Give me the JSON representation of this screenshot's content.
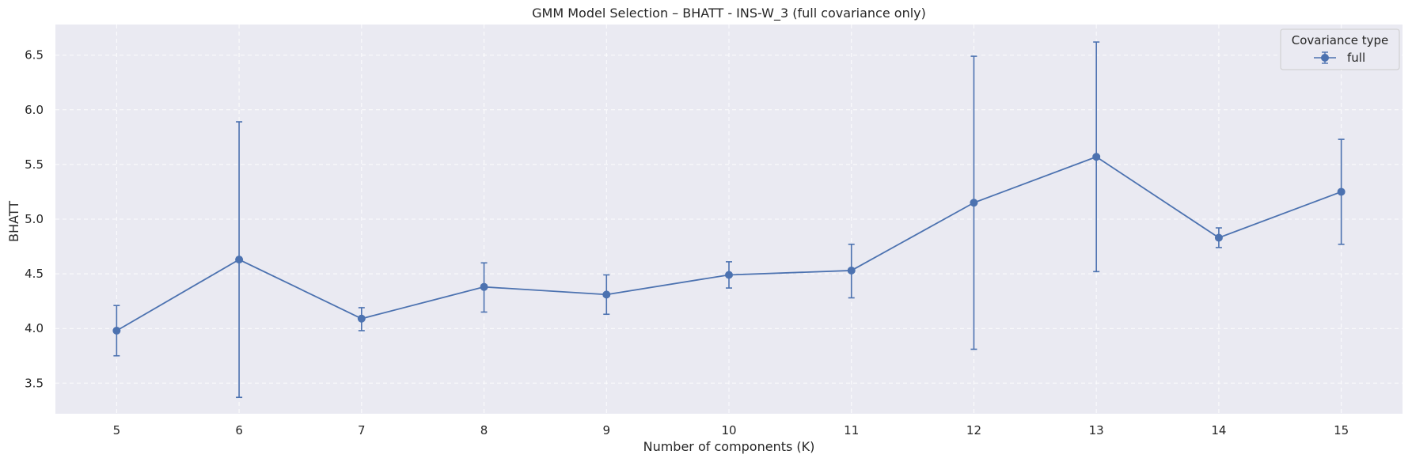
{
  "chart_data": {
    "type": "line",
    "title": "GMM Model Selection – BHATT - INS-W_3 (full covariance only)",
    "xlabel": "Number of components (K)",
    "ylabel": "BHATT",
    "x": [
      5,
      6,
      7,
      8,
      9,
      10,
      11,
      12,
      13,
      14,
      15
    ],
    "x_tick_labels": [
      "5",
      "6",
      "7",
      "8",
      "9",
      "10",
      "11",
      "12",
      "13",
      "14",
      "15"
    ],
    "y_ticks": [
      3.5,
      4.0,
      4.5,
      5.0,
      5.5,
      6.0,
      6.5
    ],
    "y_tick_labels": [
      "3.5",
      "4.0",
      "4.5",
      "5.0",
      "5.5",
      "6.0",
      "6.5"
    ],
    "xlim": [
      4.5,
      15.5
    ],
    "ylim": [
      3.22,
      6.78
    ],
    "grid": true,
    "legend": {
      "title": "Covariance type",
      "placement": "top-right"
    },
    "series": [
      {
        "name": "full",
        "color": "#4c72b0",
        "values": [
          3.98,
          4.63,
          4.09,
          4.38,
          4.31,
          4.49,
          4.53,
          5.15,
          5.57,
          4.83,
          5.25
        ],
        "error_low": [
          3.75,
          3.37,
          3.98,
          4.15,
          4.13,
          4.37,
          4.28,
          3.81,
          4.52,
          4.74,
          4.77
        ],
        "error_high": [
          4.21,
          5.89,
          4.19,
          4.6,
          4.49,
          4.61,
          4.77,
          6.49,
          6.62,
          4.92,
          5.73
        ]
      }
    ],
    "colors": {
      "plot_background": "#eaeaf2",
      "grid": "#ffffff"
    }
  }
}
